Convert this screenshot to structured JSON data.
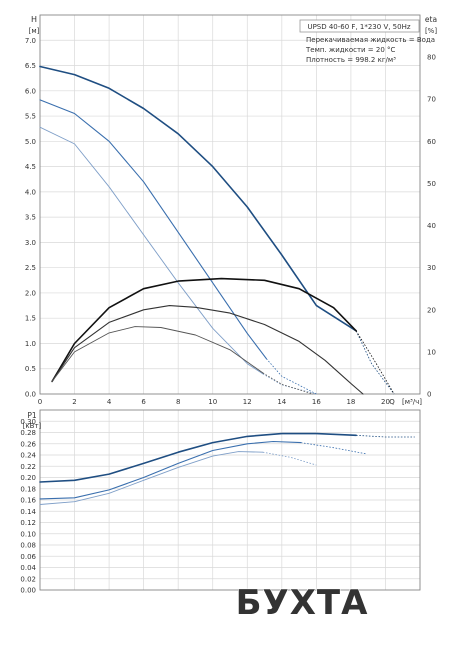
{
  "colors": {
    "dark_blue": "#1f4e82",
    "blue": "#3a6fae",
    "light_blue": "#7f9fc8",
    "black": "#111111",
    "dark_gray": "#333333",
    "gray": "#555555",
    "grid": "#d9d9d9",
    "logo_red": "#d6171f"
  },
  "legend": {
    "model": "UPSD 40-60 F, 1*230 V, 50Hz",
    "fluid": "Перекачиваемая жидкость = Вода",
    "temperature": "Темп. жидкости = 20 °C",
    "density": "Плотность = 998.2 кг/м³"
  },
  "watermark": {
    "text": "БУХТА"
  },
  "chart_data": [
    {
      "type": "line",
      "chart": "head-efficiency",
      "ylabel": "H",
      "yunit": "[м]",
      "y2label": "eta",
      "y2unit": "[%]",
      "xlabel": "Q",
      "xunit": "[м³/ч]",
      "xlim": [
        0,
        22
      ],
      "ylim": [
        0,
        7.5
      ],
      "y2lim": [
        0,
        90
      ],
      "xticks": [
        "0",
        "2",
        "4",
        "6",
        "8",
        "10",
        "12",
        "14",
        "16",
        "18",
        "20"
      ],
      "yticks": [
        "0.0",
        "0.5",
        "1.0",
        "1.5",
        "2.0",
        "2.5",
        "3.0",
        "3.5",
        "4.0",
        "4.5",
        "5.0",
        "5.5",
        "6.0",
        "6.5",
        "7.0"
      ],
      "y2ticks": [
        "0",
        "10",
        "20",
        "30",
        "40",
        "50",
        "60",
        "70",
        "80"
      ],
      "grid": true,
      "series": [
        {
          "axis": "left",
          "color": "dark_blue",
          "width": 1.6,
          "points": [
            [
              0,
              6.48
            ],
            [
              2,
              6.32
            ],
            [
              4,
              6.05
            ],
            [
              6,
              5.65
            ],
            [
              8,
              5.15
            ],
            [
              10,
              4.5
            ],
            [
              12,
              3.7
            ],
            [
              14,
              2.75
            ],
            [
              16,
              1.75
            ],
            [
              18.3,
              1.25
            ]
          ],
          "tail": [
            [
              18.3,
              1.25
            ],
            [
              19.2,
              0.6
            ],
            [
              20.5,
              0
            ]
          ]
        },
        {
          "axis": "left",
          "color": "blue",
          "width": 1.1,
          "points": [
            [
              0,
              5.82
            ],
            [
              2,
              5.55
            ],
            [
              4,
              5.0
            ],
            [
              6,
              4.2
            ],
            [
              8,
              3.2
            ],
            [
              10,
              2.2
            ],
            [
              12,
              1.2
            ],
            [
              13.1,
              0.7
            ]
          ],
          "tail": [
            [
              13.1,
              0.7
            ],
            [
              14,
              0.35
            ],
            [
              16,
              0
            ]
          ]
        },
        {
          "axis": "left",
          "color": "light_blue",
          "width": 0.9,
          "points": [
            [
              0,
              5.28
            ],
            [
              2,
              4.95
            ],
            [
              4,
              4.1
            ],
            [
              6,
              3.15
            ],
            [
              8,
              2.2
            ],
            [
              10,
              1.3
            ],
            [
              12,
              0.6
            ],
            [
              12.9,
              0.4
            ]
          ],
          "tail": [
            [
              12.9,
              0.4
            ],
            [
              14,
              0.18
            ],
            [
              16,
              0
            ]
          ]
        },
        {
          "axis": "right",
          "color": "black",
          "width": 1.6,
          "points": [
            [
              0.7,
              3
            ],
            [
              2,
              12
            ],
            [
              4,
              20.5
            ],
            [
              6,
              25
            ],
            [
              8,
              26.8
            ],
            [
              10.5,
              27.4
            ],
            [
              13,
              27
            ],
            [
              15,
              25
            ],
            [
              17,
              20.5
            ],
            [
              18.3,
              15
            ]
          ],
          "tail": [
            [
              18.3,
              15
            ],
            [
              19.5,
              7
            ],
            [
              20.5,
              0
            ]
          ]
        },
        {
          "axis": "right",
          "color": "dark_gray",
          "width": 1.1,
          "points": [
            [
              0.7,
              3
            ],
            [
              2,
              11
            ],
            [
              4,
              17
            ],
            [
              6,
              20
            ],
            [
              7.5,
              21
            ],
            [
              9,
              20.6
            ],
            [
              11,
              19.2
            ],
            [
              13,
              16.5
            ],
            [
              15,
              12.5
            ],
            [
              16.5,
              8
            ],
            [
              18,
              2.5
            ],
            [
              18.7,
              0
            ]
          ]
        },
        {
          "axis": "right",
          "color": "gray",
          "width": 0.9,
          "points": [
            [
              0.7,
              3
            ],
            [
              2,
              10
            ],
            [
              4,
              14.5
            ],
            [
              5.5,
              16
            ],
            [
              7,
              15.8
            ],
            [
              9,
              14
            ],
            [
              11,
              10.5
            ],
            [
              12.9,
              5
            ]
          ],
          "tail": [
            [
              12.9,
              5
            ],
            [
              14,
              2.3
            ],
            [
              15.8,
              0
            ]
          ]
        }
      ]
    },
    {
      "type": "line",
      "chart": "power",
      "ylabel": "P1",
      "yunit": "[кВт]",
      "xlim": [
        0,
        22
      ],
      "ylim": [
        0,
        0.32
      ],
      "yticks": [
        "0.00",
        "0.02",
        "0.04",
        "0.06",
        "0.08",
        "0.10",
        "0.12",
        "0.14",
        "0.16",
        "0.18",
        "0.20",
        "0.22",
        "0.24",
        "0.26",
        "0.28",
        "0.30"
      ],
      "grid": true,
      "series": [
        {
          "color": "dark_blue",
          "width": 1.6,
          "points": [
            [
              0,
              0.192
            ],
            [
              2,
              0.195
            ],
            [
              4,
              0.206
            ],
            [
              6,
              0.225
            ],
            [
              8,
              0.245
            ],
            [
              10,
              0.262
            ],
            [
              12,
              0.273
            ],
            [
              14,
              0.278
            ],
            [
              16,
              0.278
            ],
            [
              18.3,
              0.275
            ]
          ],
          "tail": [
            [
              18.3,
              0.275
            ],
            [
              20,
              0.272
            ],
            [
              21.7,
              0.272
            ]
          ]
        },
        {
          "color": "blue",
          "width": 1.1,
          "points": [
            [
              0,
              0.162
            ],
            [
              2,
              0.164
            ],
            [
              4,
              0.178
            ],
            [
              6,
              0.2
            ],
            [
              8,
              0.225
            ],
            [
              10,
              0.248
            ],
            [
              12,
              0.26
            ],
            [
              13.5,
              0.264
            ],
            [
              15.1,
              0.262
            ]
          ],
          "tail": [
            [
              15.1,
              0.262
            ],
            [
              17,
              0.253
            ],
            [
              18.9,
              0.242
            ]
          ]
        },
        {
          "color": "light_blue",
          "width": 0.9,
          "points": [
            [
              0,
              0.152
            ],
            [
              2,
              0.157
            ],
            [
              4,
              0.172
            ],
            [
              6,
              0.195
            ],
            [
              8,
              0.218
            ],
            [
              10,
              0.238
            ],
            [
              11.5,
              0.246
            ],
            [
              12.9,
              0.245
            ]
          ],
          "tail": [
            [
              12.9,
              0.245
            ],
            [
              14.5,
              0.236
            ],
            [
              16,
              0.222
            ]
          ]
        }
      ]
    }
  ]
}
